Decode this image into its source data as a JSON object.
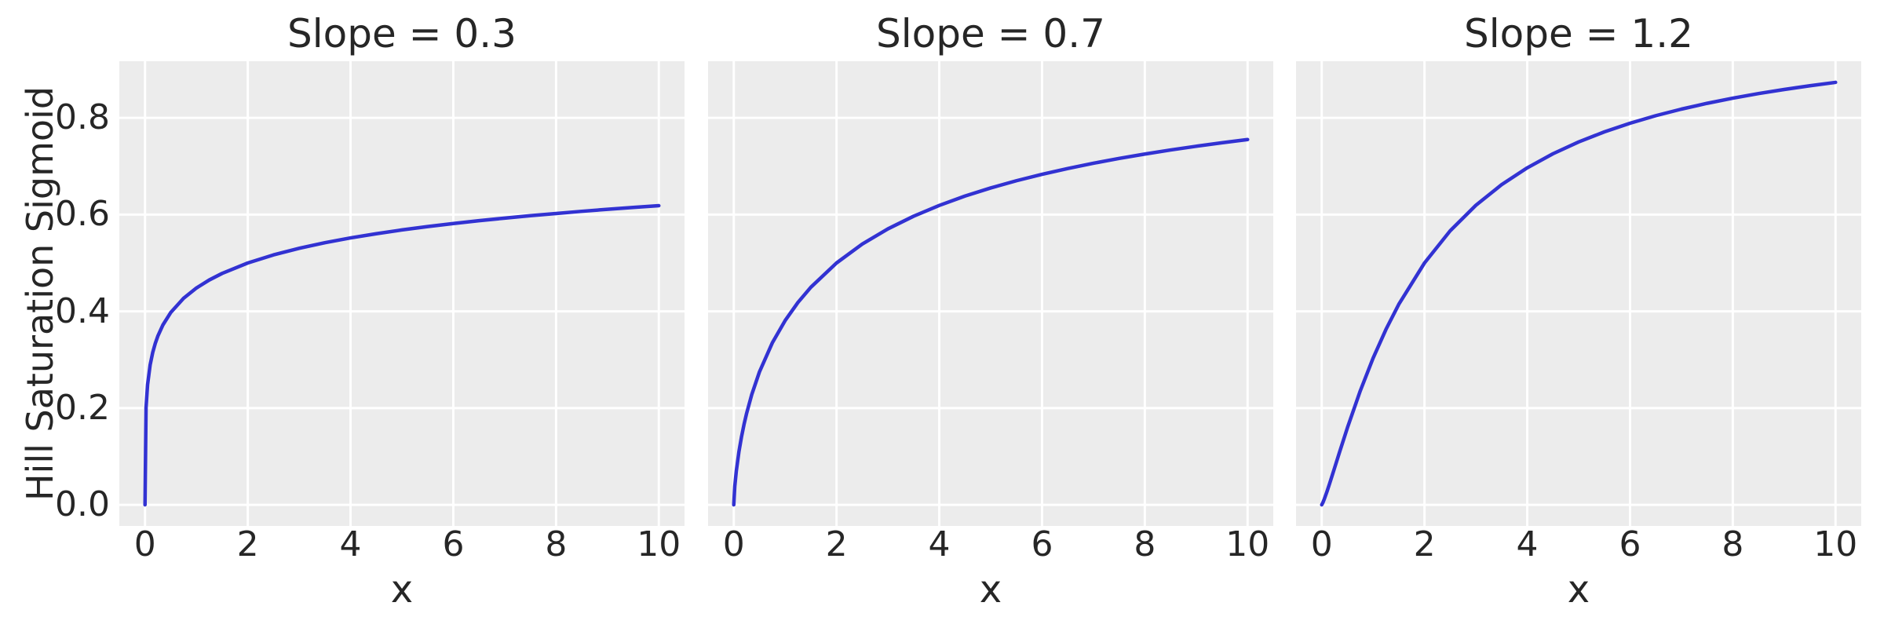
{
  "figure": {
    "background": "#ffffff",
    "panel_background": "#ececec",
    "grid_color": "#ffffff",
    "text_color": "#262626",
    "line_color": "#3232d2"
  },
  "shared": {
    "ylabel": "Hill Saturation Sigmoid",
    "xlabel": "x"
  },
  "chart_data": [
    {
      "type": "line",
      "title": "Slope = 0.3",
      "xlabel": "x",
      "ylabel": "Hill Saturation Sigmoid",
      "legend": null,
      "grid": true,
      "line_color": "#3232d2",
      "xlim": [
        -0.5,
        10.5
      ],
      "ylim": [
        -0.0437,
        0.9171
      ],
      "xticks": [
        0,
        2,
        4,
        6,
        8,
        10
      ],
      "xtick_labels": [
        "0",
        "2",
        "4",
        "6",
        "8",
        "10"
      ],
      "yticks": [
        0.0,
        0.2,
        0.4,
        0.6,
        0.8
      ],
      "ytick_labels": [
        "0.0",
        "0.2",
        "0.4",
        "0.6",
        "0.8"
      ],
      "show_ytick_labels": true,
      "x": [
        0,
        0.02,
        0.05,
        0.1,
        0.15,
        0.2,
        0.25,
        0.35,
        0.5,
        0.75,
        1,
        1.25,
        1.5,
        2,
        2.5,
        3,
        3.5,
        4,
        4.5,
        5,
        5.5,
        6,
        6.5,
        7,
        7.5,
        8,
        8.5,
        9,
        9.5,
        10
      ],
      "y": [
        0,
        0.2008,
        0.2485,
        0.2893,
        0.315,
        0.3338,
        0.3489,
        0.3722,
        0.3975,
        0.4269,
        0.4482,
        0.4648,
        0.4784,
        0.5,
        0.5167,
        0.5304,
        0.5419,
        0.5518,
        0.5605,
        0.5683,
        0.5753,
        0.5816,
        0.5874,
        0.5927,
        0.5977,
        0.6023,
        0.6068,
        0.611,
        0.6148,
        0.6184
      ]
    },
    {
      "type": "line",
      "title": "Slope = 0.7",
      "xlabel": "x",
      "ylabel": "Hill Saturation Sigmoid",
      "legend": null,
      "grid": true,
      "line_color": "#3232d2",
      "xlim": [
        -0.5,
        10.5
      ],
      "ylim": [
        -0.0437,
        0.9171
      ],
      "xticks": [
        0,
        2,
        4,
        6,
        8,
        10
      ],
      "xtick_labels": [
        "0",
        "2",
        "4",
        "6",
        "8",
        "10"
      ],
      "yticks": [
        0.0,
        0.2,
        0.4,
        0.6,
        0.8
      ],
      "ytick_labels": [
        "0.0",
        "0.2",
        "0.4",
        "0.6",
        "0.8"
      ],
      "show_ytick_labels": false,
      "x": [
        0,
        0.02,
        0.05,
        0.1,
        0.15,
        0.2,
        0.25,
        0.35,
        0.5,
        0.75,
        1,
        1.25,
        1.5,
        2,
        2.5,
        3,
        3.5,
        4,
        4.5,
        5,
        5.5,
        6,
        6.5,
        7,
        7.5,
        8,
        8.5,
        9,
        9.5,
        10
      ],
      "y": [
        0,
        0.0383,
        0.0703,
        0.1094,
        0.1402,
        0.1664,
        0.1891,
        0.2279,
        0.2748,
        0.3348,
        0.381,
        0.4185,
        0.4498,
        0.5,
        0.539,
        0.5705,
        0.5967,
        0.619,
        0.6383,
        0.6551,
        0.67,
        0.6833,
        0.6953,
        0.7062,
        0.7161,
        0.7252,
        0.7336,
        0.7413,
        0.7485,
        0.7552
      ]
    },
    {
      "type": "line",
      "title": "Slope = 1.2",
      "xlabel": "x",
      "ylabel": "Hill Saturation Sigmoid",
      "legend": null,
      "grid": true,
      "line_color": "#3232d2",
      "xlim": [
        -0.5,
        10.5
      ],
      "ylim": [
        -0.0437,
        0.9171
      ],
      "xticks": [
        0,
        2,
        4,
        6,
        8,
        10
      ],
      "xtick_labels": [
        "0",
        "2",
        "4",
        "6",
        "8",
        "10"
      ],
      "yticks": [
        0.0,
        0.2,
        0.4,
        0.6,
        0.8
      ],
      "ytick_labels": [
        "0.0",
        "0.2",
        "0.4",
        "0.6",
        "0.8"
      ],
      "show_ytick_labels": false,
      "x": [
        0,
        0.02,
        0.05,
        0.1,
        0.15,
        0.2,
        0.25,
        0.35,
        0.5,
        0.75,
        1,
        1.25,
        1.5,
        2,
        2.5,
        3,
        3.5,
        4,
        4.5,
        5,
        5.5,
        6,
        6.5,
        7,
        7.5,
        8,
        8.5,
        9,
        9.5,
        10
      ],
      "y": [
        0,
        0.004,
        0.0118,
        0.0267,
        0.0428,
        0.0594,
        0.0762,
        0.1099,
        0.1593,
        0.2356,
        0.3033,
        0.3626,
        0.4146,
        0.5,
        0.5665,
        0.6193,
        0.6618,
        0.6967,
        0.7258,
        0.7502,
        0.771,
        0.7889,
        0.8045,
        0.8181,
        0.8301,
        0.8407,
        0.8502,
        0.8587,
        0.8664,
        0.8734
      ]
    }
  ]
}
